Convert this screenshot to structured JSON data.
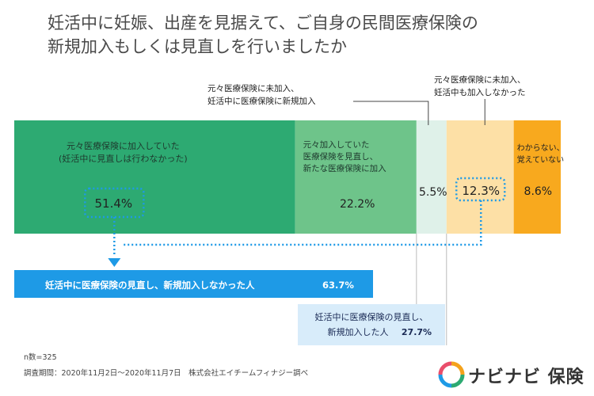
{
  "title": {
    "line1": "妊活中に妊娠、出産を見据えて、ご自身の民間医療保険の",
    "line2": "新規加入もしくは見直しを行いましたか"
  },
  "chart_data": {
    "type": "bar",
    "orientation": "horizontal-stacked-100",
    "series": [
      {
        "label_lines": [
          "元々医療保険に加入していた",
          "(妊活中に見直しは行わなかった)"
        ],
        "value": 51.4,
        "value_label": "51.4%",
        "color": "#2daa72",
        "label_color": "#1e3a2e",
        "highlight": true
      },
      {
        "label_lines": [
          "元々加入していた",
          "医療保険を見直し、",
          "新たな医療保険に加入"
        ],
        "value": 22.2,
        "value_label": "22.2%",
        "color": "#6ec48a",
        "label_color": "#1e3a2e",
        "highlight": false
      },
      {
        "label_lines": [
          "元々医療保険に未加入、",
          "妊活中に医療保険に新規加入"
        ],
        "value": 5.5,
        "value_label": "5.5%",
        "color": "#dff1e9",
        "label_color": "#222222",
        "highlight": false
      },
      {
        "label_lines": [
          "元々医療保険に未加入、",
          "妊活中も加入しなかった"
        ],
        "value": 12.3,
        "value_label": "12.3%",
        "color": "#fde0a6",
        "label_color": "#222222",
        "highlight": true
      },
      {
        "label_lines": [
          "わからない、",
          "覚えていない"
        ],
        "value": 8.6,
        "value_label": "8.6%",
        "color": "#f8a91e",
        "label_color": "#222222",
        "highlight": false
      }
    ],
    "summaries": [
      {
        "text": "妊活中に医療保険の見直し、新規加入しなかった人",
        "value_label": "63.7%",
        "value": 63.7,
        "color": "#1e9ae6",
        "text_color": "#ffffff"
      },
      {
        "text_lines": [
          "妊活中に医療保険の見直し、",
          "新規加入した人"
        ],
        "value_label": "27.7%",
        "value": 27.7,
        "color": "#d8ecfa",
        "text_color": "#1a2a55"
      }
    ],
    "xlim": [
      0,
      100
    ]
  },
  "footer": {
    "n": "n数=325",
    "survey": "調査期間：2020年11月2日〜2020年11月7日　株式会社エイチームフィナジー調べ"
  },
  "logo": {
    "text": "ナビナビ 保険",
    "colors": [
      "#f4a21c",
      "#2daa72",
      "#1e9ae6",
      "#e94e6b"
    ]
  }
}
